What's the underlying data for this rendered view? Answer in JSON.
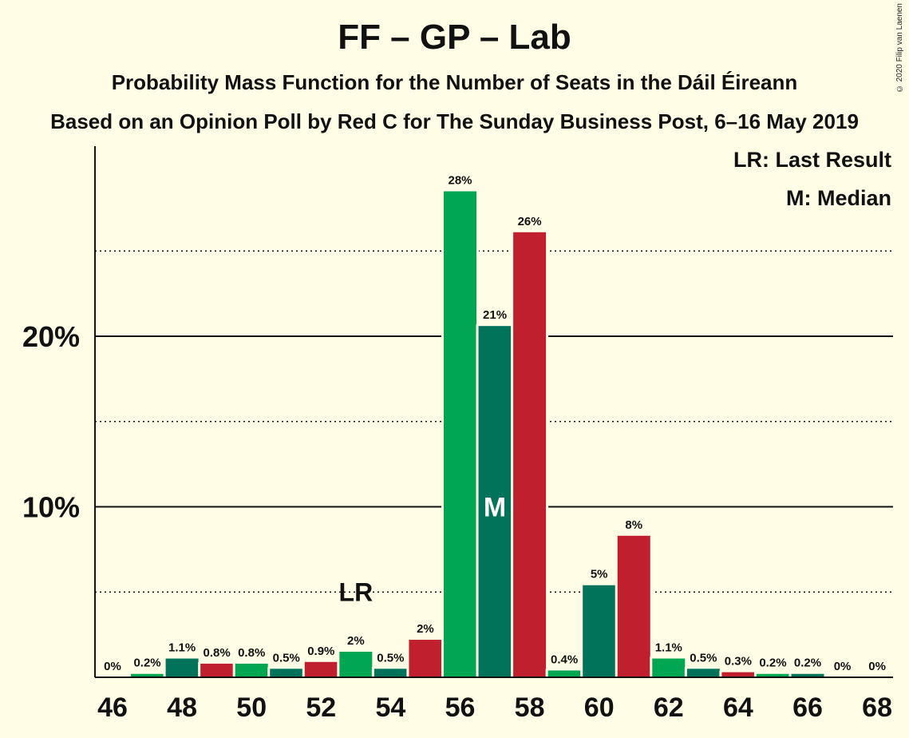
{
  "chart_data": {
    "type": "bar",
    "title": "FF – GP – Lab",
    "subtitle": "Probability Mass Function for the Number of Seats in the Dáil Éireann",
    "subtitle2": "Based on an Opinion Poll by Red C for The Sunday Business Post, 6–16 May 2019",
    "copyright": "© 2020 Filip van Laenen",
    "legend": [
      "LR: Last Result",
      "M: Median"
    ],
    "legend_placement": "top-right",
    "ylabel": "",
    "xlabel": "",
    "ylim": [
      0,
      31
    ],
    "y_ticks": [
      {
        "value": 10,
        "label": "10%",
        "style": "solid"
      },
      {
        "value": 20,
        "label": "20%",
        "style": "solid"
      }
    ],
    "y_dotted_gridlines": [
      5,
      15,
      25
    ],
    "x_tick_labels": [
      "46",
      "48",
      "50",
      "52",
      "54",
      "56",
      "58",
      "60",
      "62",
      "64",
      "66",
      "68"
    ],
    "x": [
      46,
      47,
      48,
      49,
      50,
      51,
      52,
      53,
      54,
      55,
      56,
      57,
      58,
      59,
      60,
      61,
      62,
      63,
      64,
      65,
      66,
      67,
      68
    ],
    "values": [
      0,
      0.2,
      1.1,
      0.8,
      0.8,
      0.5,
      0.9,
      1.5,
      0.5,
      2.2,
      28.5,
      20.6,
      26.1,
      0.4,
      5.4,
      8.3,
      1.1,
      0.5,
      0.3,
      0.2,
      0.2,
      0,
      0
    ],
    "labels": [
      "0%",
      "0.2%",
      "1.1%",
      "0.8%",
      "0.8%",
      "0.5%",
      "0.9%",
      "2%",
      "0.5%",
      "2%",
      "28%",
      "21%",
      "26%",
      "0.4%",
      "5%",
      "8%",
      "1.1%",
      "0.5%",
      "0.3%",
      "0.2%",
      "0.2%",
      "0%",
      "0%"
    ],
    "party_colors": [
      "#C0202E",
      "#00A651",
      "#00735A"
    ],
    "last_result": {
      "seat": 53,
      "label": "LR"
    },
    "median": {
      "seat": 57,
      "label": "M"
    },
    "grid": true
  }
}
